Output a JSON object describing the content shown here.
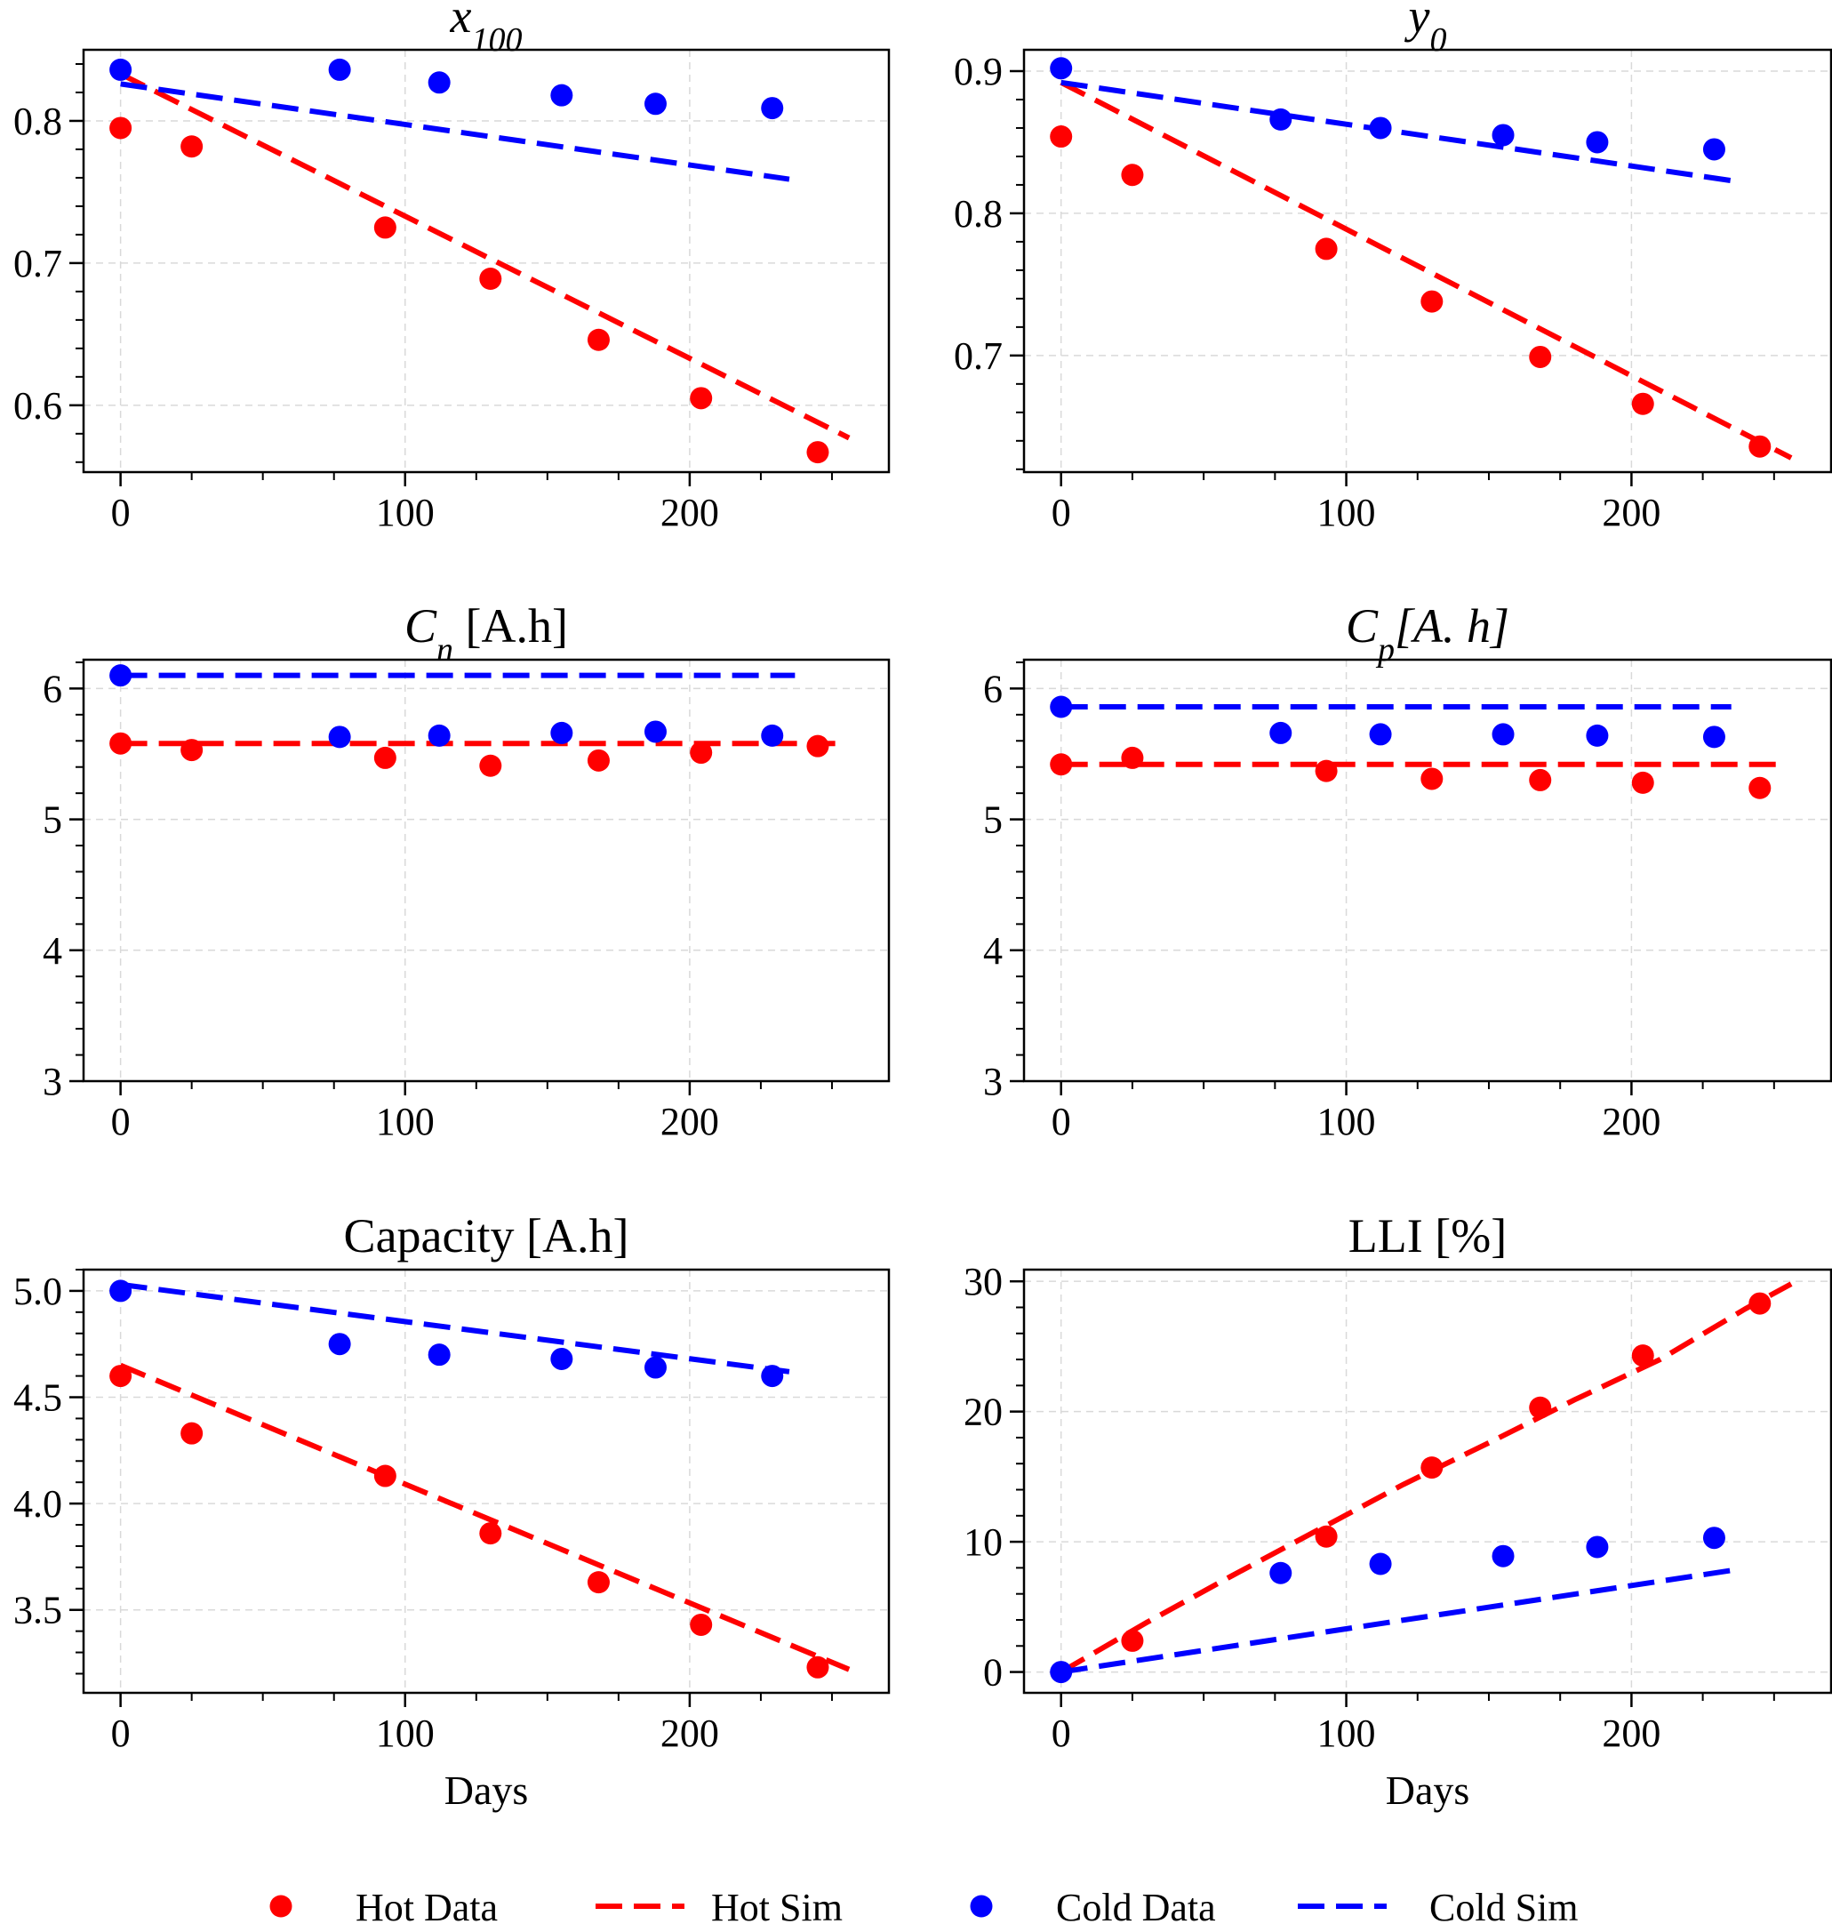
{
  "figure": {
    "legend_position": "bottom-center",
    "legend": [
      {
        "name": "Hot Data",
        "kind": "marker",
        "color": "#ff0000"
      },
      {
        "name": "Hot Sim",
        "kind": "dash",
        "color": "#ff0000"
      },
      {
        "name": "Cold Data",
        "kind": "marker",
        "color": "#0000ff"
      },
      {
        "name": "Cold Sim",
        "kind": "dash",
        "color": "#0000ff"
      }
    ]
  },
  "chart_data": [
    {
      "type": "scatter",
      "title": "x",
      "title_sub": "100",
      "title_rest": "",
      "xlabel": "",
      "ylabel": "",
      "xlim": [
        -13,
        270
      ],
      "ylim": [
        0.553,
        0.85
      ],
      "xticks": [
        "0",
        "100",
        "200"
      ],
      "xtick_values": [
        0,
        100,
        200
      ],
      "yticks": [
        "0.6",
        "0.7",
        "0.8"
      ],
      "ytick_values": [
        0.6,
        0.7,
        0.8
      ],
      "grid": true,
      "series": [
        {
          "name": "Hot Data",
          "kind": "points",
          "color": "#ff0000",
          "x": [
            0,
            25,
            93,
            130,
            168,
            204,
            245
          ],
          "y": [
            0.795,
            0.782,
            0.725,
            0.689,
            0.646,
            0.605,
            0.567
          ]
        },
        {
          "name": "Hot Sim",
          "kind": "line",
          "color": "#ff0000",
          "x": [
            0,
            256
          ],
          "y": [
            0.833,
            0.577
          ]
        },
        {
          "name": "Cold Data",
          "kind": "points",
          "color": "#0000ff",
          "x": [
            0,
            77,
            112,
            155,
            188,
            229
          ],
          "y": [
            0.836,
            0.836,
            0.827,
            0.818,
            0.812,
            0.809
          ]
        },
        {
          "name": "Cold Sim",
          "kind": "line",
          "color": "#0000ff",
          "x": [
            0,
            235
          ],
          "y": [
            0.826,
            0.759
          ]
        }
      ]
    },
    {
      "type": "scatter",
      "title": "y",
      "title_sub": "0",
      "title_rest": "",
      "xlabel": "",
      "ylabel": "",
      "xlim": [
        -13,
        270
      ],
      "ylim": [
        0.618,
        0.915
      ],
      "xticks": [
        "0",
        "100",
        "200"
      ],
      "xtick_values": [
        0,
        100,
        200
      ],
      "yticks": [
        "0.7",
        "0.8",
        "0.9"
      ],
      "ytick_values": [
        0.7,
        0.8,
        0.9
      ],
      "grid": true,
      "series": [
        {
          "name": "Hot Data",
          "kind": "points",
          "color": "#ff0000",
          "x": [
            0,
            25,
            93,
            130,
            168,
            204,
            245
          ],
          "y": [
            0.854,
            0.827,
            0.775,
            0.738,
            0.699,
            0.666,
            0.636
          ]
        },
        {
          "name": "Hot Sim",
          "kind": "line",
          "color": "#ff0000",
          "x": [
            0,
            256
          ],
          "y": [
            0.892,
            0.628
          ]
        },
        {
          "name": "Cold Data",
          "kind": "points",
          "color": "#0000ff",
          "x": [
            0,
            77,
            112,
            155,
            188,
            229
          ],
          "y": [
            0.902,
            0.866,
            0.86,
            0.855,
            0.85,
            0.845
          ]
        },
        {
          "name": "Cold Sim",
          "kind": "line",
          "color": "#0000ff",
          "x": [
            0,
            235
          ],
          "y": [
            0.892,
            0.823
          ]
        }
      ]
    },
    {
      "type": "scatter",
      "title": "C",
      "title_sub": "n",
      "title_rest": " [A.h]",
      "xlabel": "",
      "ylabel": "",
      "xlim": [
        -13,
        270
      ],
      "ylim": [
        3.0,
        6.22
      ],
      "xticks": [
        "0",
        "100",
        "200"
      ],
      "xtick_values": [
        0,
        100,
        200
      ],
      "yticks": [
        "3",
        "4",
        "5",
        "6"
      ],
      "ytick_values": [
        3,
        4,
        5,
        6
      ],
      "grid": true,
      "series": [
        {
          "name": "Hot Data",
          "kind": "points",
          "color": "#ff0000",
          "x": [
            0,
            25,
            93,
            130,
            168,
            204,
            245
          ],
          "y": [
            5.58,
            5.53,
            5.47,
            5.41,
            5.45,
            5.51,
            5.56
          ]
        },
        {
          "name": "Hot Sim",
          "kind": "line",
          "color": "#ff0000",
          "x": [
            0,
            252
          ],
          "y": [
            5.58,
            5.58
          ]
        },
        {
          "name": "Cold Data",
          "kind": "points",
          "color": "#0000ff",
          "x": [
            0,
            77,
            112,
            155,
            188,
            229
          ],
          "y": [
            6.1,
            5.63,
            5.64,
            5.66,
            5.67,
            5.64
          ]
        },
        {
          "name": "Cold Sim",
          "kind": "line",
          "color": "#0000ff",
          "x": [
            0,
            237
          ],
          "y": [
            6.1,
            6.1
          ]
        }
      ]
    },
    {
      "type": "scatter",
      "title": "C",
      "title_sub": "p",
      "title_rest": "[A. h]",
      "xlabel": "",
      "ylabel": "",
      "xlim": [
        -13,
        270
      ],
      "ylim": [
        3.0,
        6.22
      ],
      "xticks": [
        "0",
        "100",
        "200"
      ],
      "xtick_values": [
        0,
        100,
        200
      ],
      "yticks": [
        "3",
        "4",
        "5",
        "6"
      ],
      "ytick_values": [
        3,
        4,
        5,
        6
      ],
      "grid": true,
      "series": [
        {
          "name": "Hot Data",
          "kind": "points",
          "color": "#ff0000",
          "x": [
            0,
            25,
            93,
            130,
            168,
            204,
            245
          ],
          "y": [
            5.42,
            5.47,
            5.37,
            5.31,
            5.3,
            5.28,
            5.24
          ]
        },
        {
          "name": "Hot Sim",
          "kind": "line",
          "color": "#ff0000",
          "x": [
            0,
            252
          ],
          "y": [
            5.42,
            5.42
          ]
        },
        {
          "name": "Cold Data",
          "kind": "points",
          "color": "#0000ff",
          "x": [
            0,
            77,
            112,
            155,
            188,
            229
          ],
          "y": [
            5.86,
            5.66,
            5.65,
            5.65,
            5.64,
            5.63
          ]
        },
        {
          "name": "Cold Sim",
          "kind": "line",
          "color": "#0000ff",
          "x": [
            0,
            235
          ],
          "y": [
            5.86,
            5.86
          ]
        }
      ]
    },
    {
      "type": "scatter",
      "title": "Capacity [A.h]",
      "title_sub": "",
      "title_rest": "",
      "xlabel": "Days",
      "ylabel": "",
      "xlim": [
        -13,
        270
      ],
      "ylim": [
        3.11,
        5.1
      ],
      "xticks": [
        "0",
        "100",
        "200"
      ],
      "xtick_values": [
        0,
        100,
        200
      ],
      "yticks": [
        "3.5",
        "4.0",
        "4.5",
        "5.0"
      ],
      "ytick_values": [
        3.5,
        4.0,
        4.5,
        5.0
      ],
      "grid": true,
      "series": [
        {
          "name": "Hot Data",
          "kind": "points",
          "color": "#ff0000",
          "x": [
            0,
            25,
            93,
            130,
            168,
            204,
            245
          ],
          "y": [
            4.6,
            4.33,
            4.13,
            3.86,
            3.63,
            3.43,
            3.23
          ]
        },
        {
          "name": "Hot Sim",
          "kind": "line",
          "color": "#ff0000",
          "x": [
            0,
            256
          ],
          "y": [
            4.65,
            3.22
          ]
        },
        {
          "name": "Cold Data",
          "kind": "points",
          "color": "#0000ff",
          "x": [
            0,
            77,
            112,
            155,
            188,
            229
          ],
          "y": [
            5.0,
            4.75,
            4.7,
            4.68,
            4.64,
            4.6
          ]
        },
        {
          "name": "Cold Sim",
          "kind": "line",
          "color": "#0000ff",
          "x": [
            0,
            235
          ],
          "y": [
            5.03,
            4.62
          ]
        }
      ]
    },
    {
      "type": "scatter",
      "title": "LLI [%]",
      "title_sub": "",
      "title_rest": "",
      "xlabel": "Days",
      "ylabel": "",
      "xlim": [
        -13,
        270
      ],
      "ylim": [
        -1.6,
        30.9
      ],
      "xticks": [
        "0",
        "100",
        "200"
      ],
      "xtick_values": [
        0,
        100,
        200
      ],
      "yticks": [
        "0",
        "10",
        "20",
        "30"
      ],
      "ytick_values": [
        0,
        10,
        20,
        30
      ],
      "grid": true,
      "series": [
        {
          "name": "Hot Data",
          "kind": "points",
          "color": "#ff0000",
          "x": [
            25,
            93,
            130,
            168,
            204,
            245
          ],
          "y": [
            2.4,
            10.4,
            15.7,
            20.3,
            24.3,
            28.3
          ]
        },
        {
          "name": "Hot Sim",
          "kind": "line",
          "color": "#ff0000",
          "x": [
            0,
            30,
            60,
            90,
            120,
            150,
            180,
            210,
            240,
            256
          ],
          "y": [
            0,
            3.8,
            7.4,
            10.9,
            14.4,
            17.6,
            20.9,
            24.0,
            27.9,
            29.8
          ]
        },
        {
          "name": "Cold Data",
          "kind": "points",
          "color": "#0000ff",
          "x": [
            0,
            77,
            112,
            155,
            188,
            229
          ],
          "y": [
            0,
            7.6,
            8.3,
            8.9,
            9.6,
            10.3
          ]
        },
        {
          "name": "Cold Sim",
          "kind": "line",
          "color": "#0000ff",
          "x": [
            0,
            235
          ],
          "y": [
            0,
            7.8
          ]
        }
      ]
    }
  ]
}
